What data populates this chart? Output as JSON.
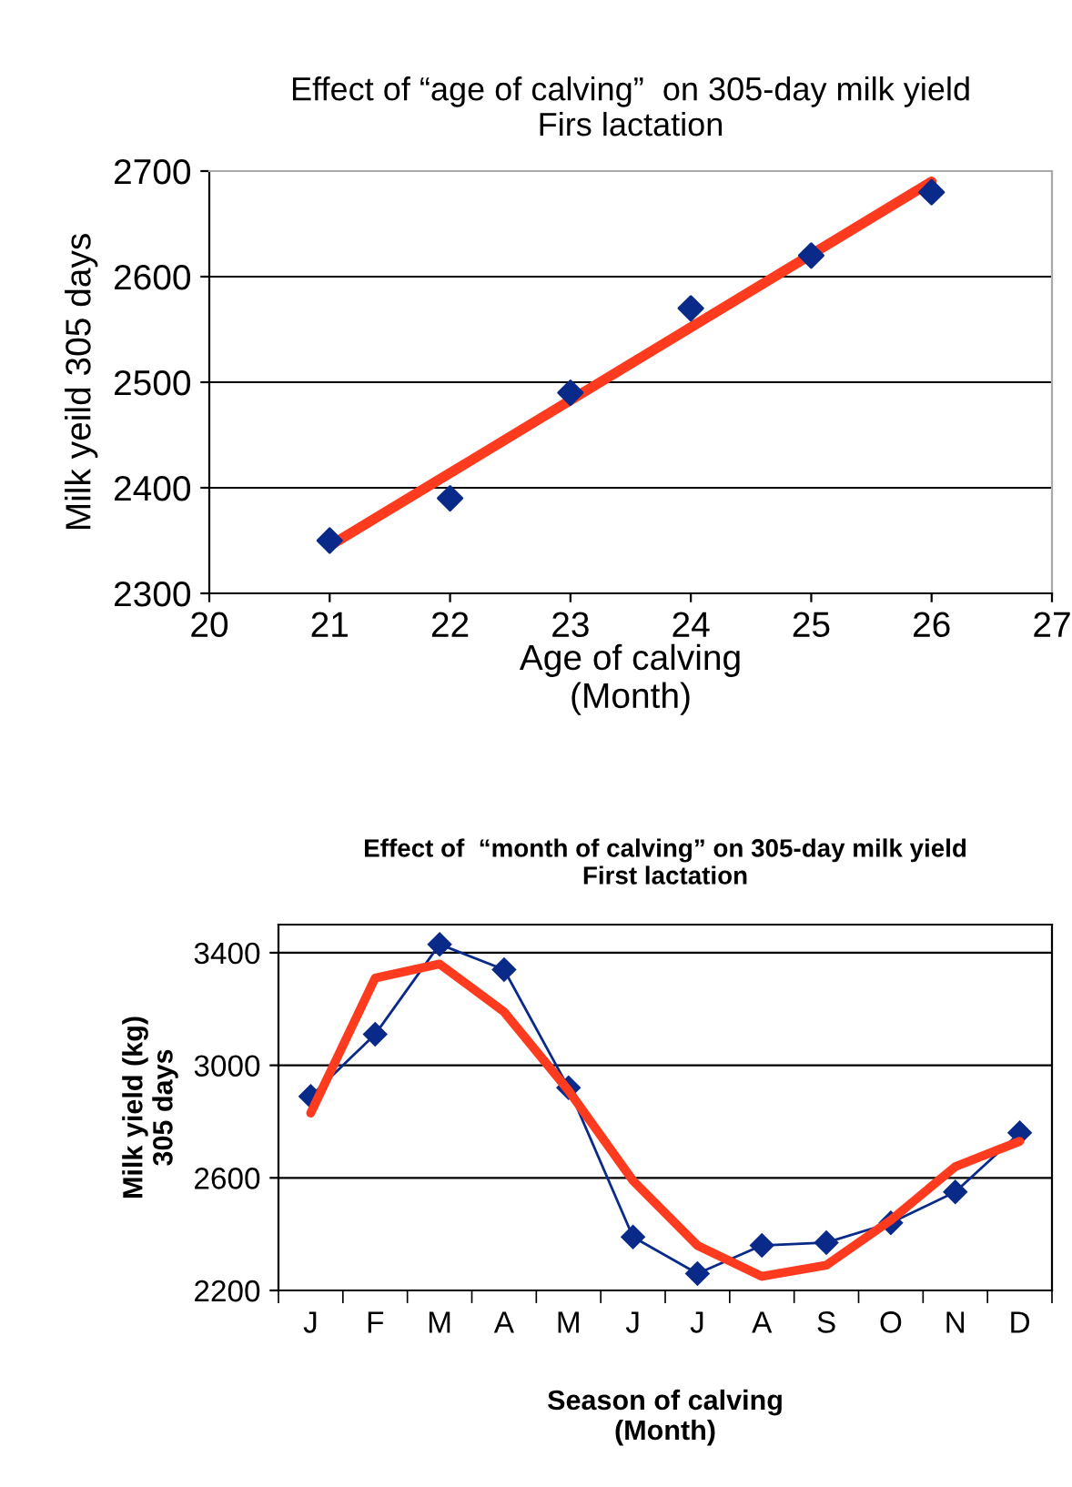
{
  "chart_data": [
    {
      "type": "scatter",
      "title": "Effect of “age of calving”  on 305-day milk yield\nFirs lactation",
      "xlabel": "Age of calving\n(Month)",
      "ylabel": "Milk yeild 305 days",
      "x": [
        21,
        22,
        23,
        24,
        25,
        26
      ],
      "series": [
        {
          "color": "#0a2a8a",
          "marker": "diamond",
          "values": [
            2350,
            2390,
            2490,
            2570,
            2620,
            2680
          ]
        },
        {
          "type": "line",
          "color": "#ff3b1f",
          "x": [
            21,
            26
          ],
          "values": [
            2345,
            2690
          ],
          "marker": "none"
        }
      ],
      "xlim": [
        20,
        27
      ],
      "xticks": [
        20,
        21,
        22,
        23,
        24,
        25,
        26,
        27
      ],
      "ylim": [
        2300,
        2700
      ],
      "yticks": [
        2300,
        2400,
        2500,
        2600,
        2700
      ],
      "grid": "y",
      "legend": false
    },
    {
      "type": "line",
      "title": "Effect of  “month of calving” on 305-day milk yield\nFirst lactation",
      "xlabel": "Season of calving\n(Month)",
      "ylabel": "Milk yield (kg)\n305 days",
      "categories": [
        "J",
        "F",
        "M",
        "A",
        "M",
        "J",
        "J",
        "A",
        "S",
        "O",
        "N",
        "D"
      ],
      "series": [
        {
          "color": "#0a2a8a",
          "marker": "diamond",
          "values": [
            2890,
            3110,
            3430,
            3340,
            2920,
            2390,
            2260,
            2360,
            2370,
            2440,
            2550,
            2760
          ]
        },
        {
          "color": "#ff3b1f",
          "marker": "none",
          "values": [
            2830,
            3310,
            3360,
            3190,
            2910,
            2590,
            2360,
            2250,
            2290,
            2450,
            2640,
            2730
          ]
        }
      ],
      "ylim": [
        2200,
        3500
      ],
      "yticks": [
        2200,
        2600,
        3000,
        3400
      ],
      "grid": "y",
      "legend": false
    }
  ]
}
